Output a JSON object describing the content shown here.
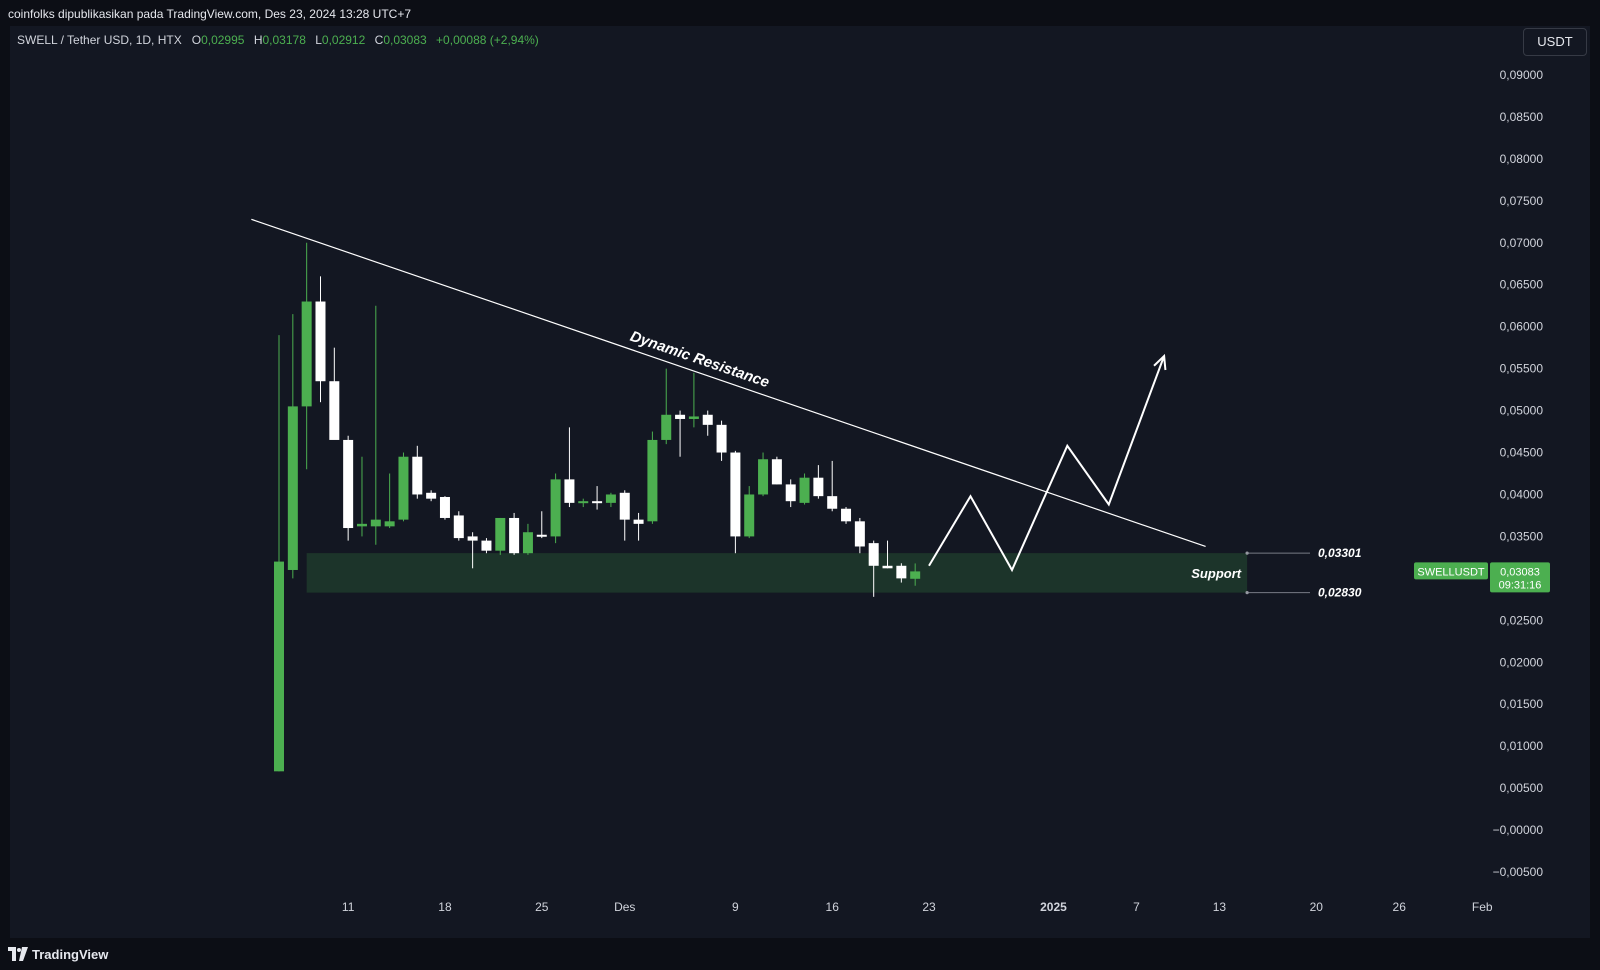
{
  "header": {
    "publish_line": "coinfolks dipublikasikan pada TradingView.com, Des 23, 2024 13:28 UTC+7"
  },
  "legend": {
    "symbol": "SWELL / Tether USD, 1D, HTX",
    "o_label": "O",
    "o_value": "0,02995",
    "h_label": "H",
    "h_value": "0,03178",
    "l_label": "L",
    "l_value": "0,02912",
    "c_label": "C",
    "c_value": "0,03083",
    "change": "+0,00088 (+2,94%)"
  },
  "currency_button": "USDT",
  "footer": {
    "brand": "TradingView"
  },
  "colors": {
    "background": "#131722",
    "up": "#4caf50",
    "down": "#ffffff",
    "support_zone": "#1f3a2c",
    "text": "#d1d4dc"
  },
  "chart_data": {
    "type": "candlestick",
    "ylim": [
      -0.0055,
      0.0912
    ],
    "y_ticks": [
      "0,09000",
      "0,08500",
      "0,08000",
      "0,07500",
      "0,07000",
      "0,06500",
      "0,06000",
      "0,05500",
      "0,05000",
      "0,04500",
      "0,04000",
      "0,03500",
      "0,03000",
      "0,02500",
      "0,02000",
      "0,01500",
      "0,01000",
      "0,00500",
      "−0,00000",
      "−0,00500"
    ],
    "y_tick_values": [
      0.09,
      0.085,
      0.08,
      0.075,
      0.07,
      0.065,
      0.06,
      0.055,
      0.05,
      0.045,
      0.04,
      0.035,
      0.03,
      0.025,
      0.02,
      0.015,
      0.01,
      0.005,
      0.0,
      -0.005
    ],
    "x_ticks": [
      {
        "label": "11",
        "t": 5,
        "bold": false
      },
      {
        "label": "18",
        "t": 12,
        "bold": false
      },
      {
        "label": "25",
        "t": 19,
        "bold": false
      },
      {
        "label": "Des",
        "t": 25,
        "bold": false
      },
      {
        "label": "9",
        "t": 33,
        "bold": false
      },
      {
        "label": "16",
        "t": 40,
        "bold": false
      },
      {
        "label": "23",
        "t": 47,
        "bold": false
      },
      {
        "label": "2025",
        "t": 56,
        "bold": true
      },
      {
        "label": "7",
        "t": 62,
        "bold": false
      },
      {
        "label": "13",
        "t": 68,
        "bold": false
      },
      {
        "label": "20",
        "t": 75,
        "bold": false
      },
      {
        "label": "26",
        "t": 81,
        "bold": false
      },
      {
        "label": "Feb",
        "t": 87,
        "bold": false
      }
    ],
    "candles": [
      {
        "t": 0,
        "o": 0.007,
        "h": 0.059,
        "l": 0.007,
        "c": 0.032
      },
      {
        "t": 1,
        "o": 0.031,
        "h": 0.0615,
        "l": 0.03,
        "c": 0.0505
      },
      {
        "t": 2,
        "o": 0.0505,
        "h": 0.07,
        "l": 0.043,
        "c": 0.063
      },
      {
        "t": 3,
        "o": 0.063,
        "h": 0.066,
        "l": 0.051,
        "c": 0.0535
      },
      {
        "t": 4,
        "o": 0.0535,
        "h": 0.0575,
        "l": 0.047,
        "c": 0.0465
      },
      {
        "t": 5,
        "o": 0.0465,
        "h": 0.047,
        "l": 0.0345,
        "c": 0.036
      },
      {
        "t": 6,
        "o": 0.0362,
        "h": 0.0445,
        "l": 0.035,
        "c": 0.0365
      },
      {
        "t": 7,
        "o": 0.0362,
        "h": 0.0625,
        "l": 0.034,
        "c": 0.037
      },
      {
        "t": 8,
        "o": 0.0362,
        "h": 0.0425,
        "l": 0.036,
        "c": 0.0368
      },
      {
        "t": 9,
        "o": 0.037,
        "h": 0.045,
        "l": 0.0368,
        "c": 0.0445
      },
      {
        "t": 10,
        "o": 0.0445,
        "h": 0.0458,
        "l": 0.0395,
        "c": 0.04
      },
      {
        "t": 11,
        "o": 0.0402,
        "h": 0.0405,
        "l": 0.0392,
        "c": 0.0395
      },
      {
        "t": 12,
        "o": 0.0397,
        "h": 0.0398,
        "l": 0.037,
        "c": 0.0372
      },
      {
        "t": 13,
        "o": 0.0375,
        "h": 0.038,
        "l": 0.0345,
        "c": 0.0348
      },
      {
        "t": 14,
        "o": 0.035,
        "h": 0.0355,
        "l": 0.0312,
        "c": 0.0345
      },
      {
        "t": 15,
        "o": 0.0345,
        "h": 0.0348,
        "l": 0.033,
        "c": 0.0333
      },
      {
        "t": 16,
        "o": 0.0333,
        "h": 0.0372,
        "l": 0.0328,
        "c": 0.0372
      },
      {
        "t": 17,
        "o": 0.0372,
        "h": 0.0378,
        "l": 0.0328,
        "c": 0.033
      },
      {
        "t": 18,
        "o": 0.033,
        "h": 0.0365,
        "l": 0.0328,
        "c": 0.0355
      },
      {
        "t": 19,
        "o": 0.0352,
        "h": 0.038,
        "l": 0.0348,
        "c": 0.035
      },
      {
        "t": 20,
        "o": 0.035,
        "h": 0.0425,
        "l": 0.0342,
        "c": 0.0418
      },
      {
        "t": 21,
        "o": 0.0418,
        "h": 0.048,
        "l": 0.0385,
        "c": 0.039
      },
      {
        "t": 22,
        "o": 0.039,
        "h": 0.0395,
        "l": 0.0385,
        "c": 0.0392
      },
      {
        "t": 23,
        "o": 0.0392,
        "h": 0.041,
        "l": 0.0382,
        "c": 0.039
      },
      {
        "t": 24,
        "o": 0.039,
        "h": 0.0402,
        "l": 0.0385,
        "c": 0.04
      },
      {
        "t": 25,
        "o": 0.0402,
        "h": 0.0405,
        "l": 0.0345,
        "c": 0.037
      },
      {
        "t": 26,
        "o": 0.037,
        "h": 0.0378,
        "l": 0.0345,
        "c": 0.0365
      },
      {
        "t": 27,
        "o": 0.0368,
        "h": 0.0475,
        "l": 0.0365,
        "c": 0.0465
      },
      {
        "t": 28,
        "o": 0.0465,
        "h": 0.055,
        "l": 0.046,
        "c": 0.0495
      },
      {
        "t": 29,
        "o": 0.0495,
        "h": 0.05,
        "l": 0.0445,
        "c": 0.049
      },
      {
        "t": 30,
        "o": 0.049,
        "h": 0.0545,
        "l": 0.048,
        "c": 0.0493
      },
      {
        "t": 31,
        "o": 0.0495,
        "h": 0.05,
        "l": 0.047,
        "c": 0.0483
      },
      {
        "t": 32,
        "o": 0.0483,
        "h": 0.0488,
        "l": 0.044,
        "c": 0.045
      },
      {
        "t": 33,
        "o": 0.045,
        "h": 0.0452,
        "l": 0.033,
        "c": 0.035
      },
      {
        "t": 34,
        "o": 0.035,
        "h": 0.041,
        "l": 0.0348,
        "c": 0.04
      },
      {
        "t": 35,
        "o": 0.04,
        "h": 0.045,
        "l": 0.0398,
        "c": 0.0442
      },
      {
        "t": 36,
        "o": 0.0442,
        "h": 0.0445,
        "l": 0.0412,
        "c": 0.0412
      },
      {
        "t": 37,
        "o": 0.0412,
        "h": 0.0418,
        "l": 0.0385,
        "c": 0.0392
      },
      {
        "t": 38,
        "o": 0.039,
        "h": 0.0425,
        "l": 0.0388,
        "c": 0.042
      },
      {
        "t": 39,
        "o": 0.042,
        "h": 0.0435,
        "l": 0.0395,
        "c": 0.0398
      },
      {
        "t": 40,
        "o": 0.0398,
        "h": 0.044,
        "l": 0.038,
        "c": 0.0383
      },
      {
        "t": 41,
        "o": 0.0383,
        "h": 0.0385,
        "l": 0.0365,
        "c": 0.0368
      },
      {
        "t": 42,
        "o": 0.0368,
        "h": 0.0372,
        "l": 0.033,
        "c": 0.0338
      },
      {
        "t": 43,
        "o": 0.0342,
        "h": 0.0345,
        "l": 0.0278,
        "c": 0.0315
      },
      {
        "t": 44,
        "o": 0.0315,
        "h": 0.0345,
        "l": 0.0312,
        "c": 0.0312
      },
      {
        "t": 45,
        "o": 0.0315,
        "h": 0.0318,
        "l": 0.0295,
        "c": 0.03
      },
      {
        "t": 46,
        "o": 0.02995,
        "h": 0.03178,
        "l": 0.02912,
        "c": 0.03083
      }
    ],
    "annotations": {
      "trendline": {
        "label": "Dynamic Resistance",
        "start": {
          "t": -2,
          "y": 0.0728
        },
        "end": {
          "t": 67,
          "y": 0.0338
        }
      },
      "support_zone": {
        "label": "Support",
        "t_start": 2,
        "t_end": 70,
        "y_low": 0.0283,
        "y_high": 0.03301,
        "low_label": "0,02830",
        "high_label": "0,03301"
      },
      "projection": [
        {
          "t": 47,
          "y": 0.0315
        },
        {
          "t": 50,
          "y": 0.0398
        },
        {
          "t": 53,
          "y": 0.031
        },
        {
          "t": 57,
          "y": 0.0458
        },
        {
          "t": 60,
          "y": 0.0388
        },
        {
          "t": 64,
          "y": 0.0565
        }
      ]
    },
    "price_tags": {
      "symbol": "SWELLUSDT",
      "last": "0,03083",
      "countdown": "09:31:16"
    }
  }
}
